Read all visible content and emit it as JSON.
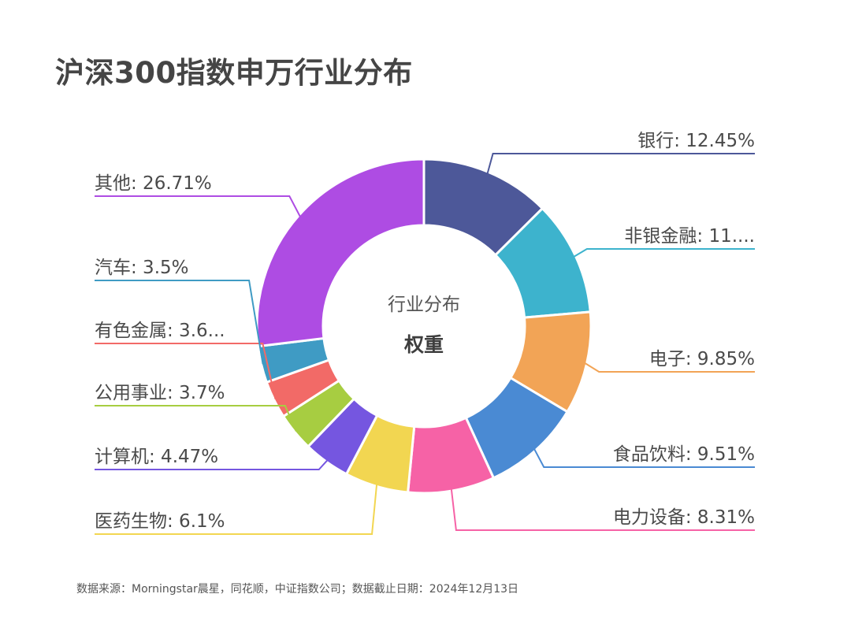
{
  "title": "沪深300指数申万行业分布",
  "source": "数据来源：Morningstar晨星，同花顺，中证指数公司；数据截止日期：2024年12月13日",
  "chart_data": {
    "type": "pie",
    "donut": true,
    "center_text": [
      "行业分布",
      "权重"
    ],
    "unit": "%",
    "slices": [
      {
        "name": "银行",
        "value": 12.45,
        "label": "银行: 12.45%",
        "color": "#4d5899"
      },
      {
        "name": "非银金融",
        "value": 11.0,
        "label": "非银金融: 11....",
        "color": "#3db3cd"
      },
      {
        "name": "电子",
        "value": 9.85,
        "label": "电子: 9.85%",
        "color": "#f2a456"
      },
      {
        "name": "食品饮料",
        "value": 9.51,
        "label": "食品饮料: 9.51%",
        "color": "#4a8ad3"
      },
      {
        "name": "电力设备",
        "value": 8.31,
        "label": "电力设备: 8.31%",
        "color": "#f662a6"
      },
      {
        "name": "医药生物",
        "value": 6.1,
        "label": "医药生物: 6.1%",
        "color": "#f2d651"
      },
      {
        "name": "计算机",
        "value": 4.47,
        "label": "计算机: 4.47%",
        "color": "#7556e0"
      },
      {
        "name": "公用事业",
        "value": 3.7,
        "label": "公用事业: 3.7%",
        "color": "#a7cd41"
      },
      {
        "name": "有色金属",
        "value": 3.6,
        "label": "有色金属: 3.6...",
        "color": "#f26a67"
      },
      {
        "name": "汽车",
        "value": 3.5,
        "label": "汽车: 3.5%",
        "color": "#3f9bc4"
      },
      {
        "name": "其他",
        "value": 26.71,
        "label": "其他: 26.71%",
        "color": "#ae4ce3"
      }
    ]
  }
}
